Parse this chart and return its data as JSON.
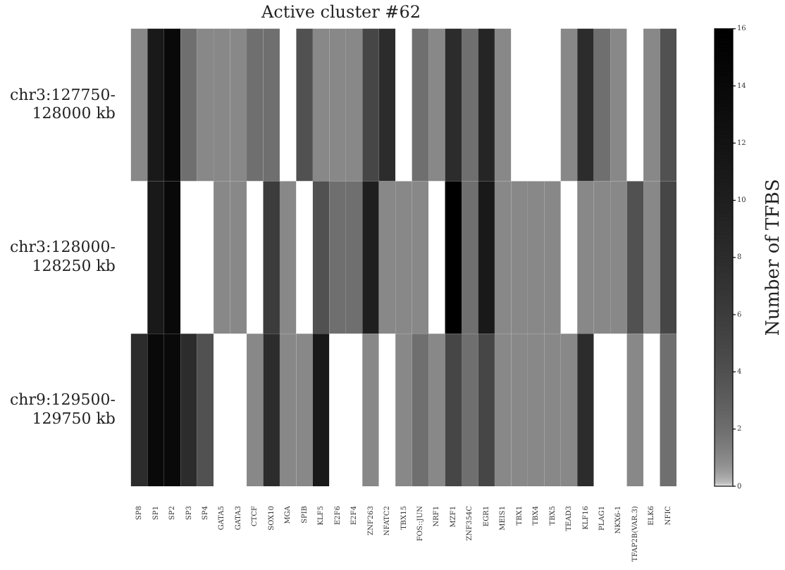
{
  "chart_data": {
    "type": "heatmap",
    "title": "Active cluster #62",
    "categories": [
      "SP8",
      "SP1",
      "SP2",
      "SP3",
      "SP4",
      "GATA5",
      "GATA3",
      "CTCF",
      "SOX10",
      "MGA",
      "SPIB",
      "KLF5",
      "E2F6",
      "E2F4",
      "ZNF263",
      "NFATC2",
      "TBX15",
      "FOS::JUN",
      "NRF1",
      "MZF1",
      "ZNF354C",
      "EGR1",
      "MEIS1",
      "TBX1",
      "TBX4",
      "TBX5",
      "TEAD3",
      "KLF16",
      "PLAG1",
      "NKX6-1",
      "TFAP2B(VAR.3)",
      "ELK6",
      "NFIC"
    ],
    "y_categories": [
      "chr3:127750-128000 kb",
      "chr3:128000-128250 kb",
      "chr9:129500-129750 kb"
    ],
    "cells": [
      [
        1,
        11,
        14,
        2,
        1,
        1,
        1,
        2,
        2,
        0,
        4,
        1,
        1,
        1,
        5,
        8,
        0,
        2,
        1,
        8,
        2,
        9,
        1,
        0,
        0,
        0,
        1,
        8,
        2,
        1,
        0,
        1,
        4
      ],
      [
        0,
        11,
        14,
        0,
        0,
        1,
        1,
        0,
        6,
        1,
        0,
        4,
        2,
        2,
        10,
        1,
        1,
        1,
        0,
        16,
        2,
        11,
        1,
        1,
        1,
        1,
        0,
        1,
        1,
        1,
        4,
        1,
        5
      ],
      [
        8,
        14,
        14,
        8,
        4,
        0,
        0,
        1,
        8,
        1,
        1,
        11,
        0,
        0,
        1,
        0,
        1,
        2,
        1,
        5,
        2,
        5,
        1,
        1,
        1,
        1,
        1,
        8,
        0,
        0,
        1,
        0,
        2
      ]
    ],
    "clim": [
      0,
      16
    ],
    "cticks": [
      0,
      2,
      4,
      6,
      8,
      10,
      12,
      14,
      16
    ],
    "clabel": "Number of TFBS"
  }
}
